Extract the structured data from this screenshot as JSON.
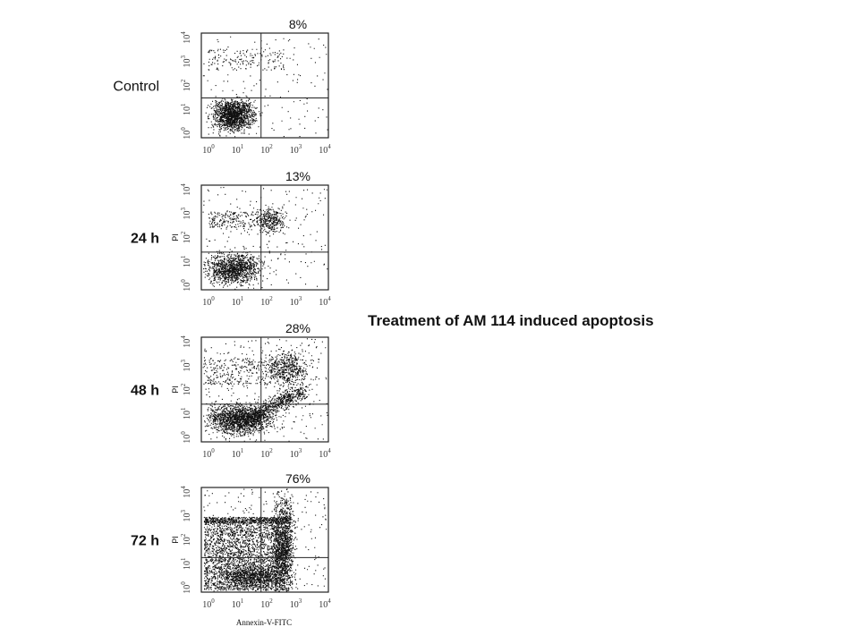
{
  "caption": "Treatment of AM 114 induced apoptosis",
  "x_axis_label": "Annexin-V-FITC",
  "y_axis_label": "PI",
  "ticks": [
    {
      "base": "10",
      "exp": "0"
    },
    {
      "base": "10",
      "exp": "1"
    },
    {
      "base": "10",
      "exp": "2"
    },
    {
      "base": "10",
      "exp": "3"
    },
    {
      "base": "10",
      "exp": "4"
    }
  ],
  "panels": [
    {
      "label": "Control",
      "percent": "8%"
    },
    {
      "label": "24 h",
      "percent": "13%"
    },
    {
      "label": "48 h",
      "percent": "28%"
    },
    {
      "label": "72 h",
      "percent": "76%"
    }
  ]
}
